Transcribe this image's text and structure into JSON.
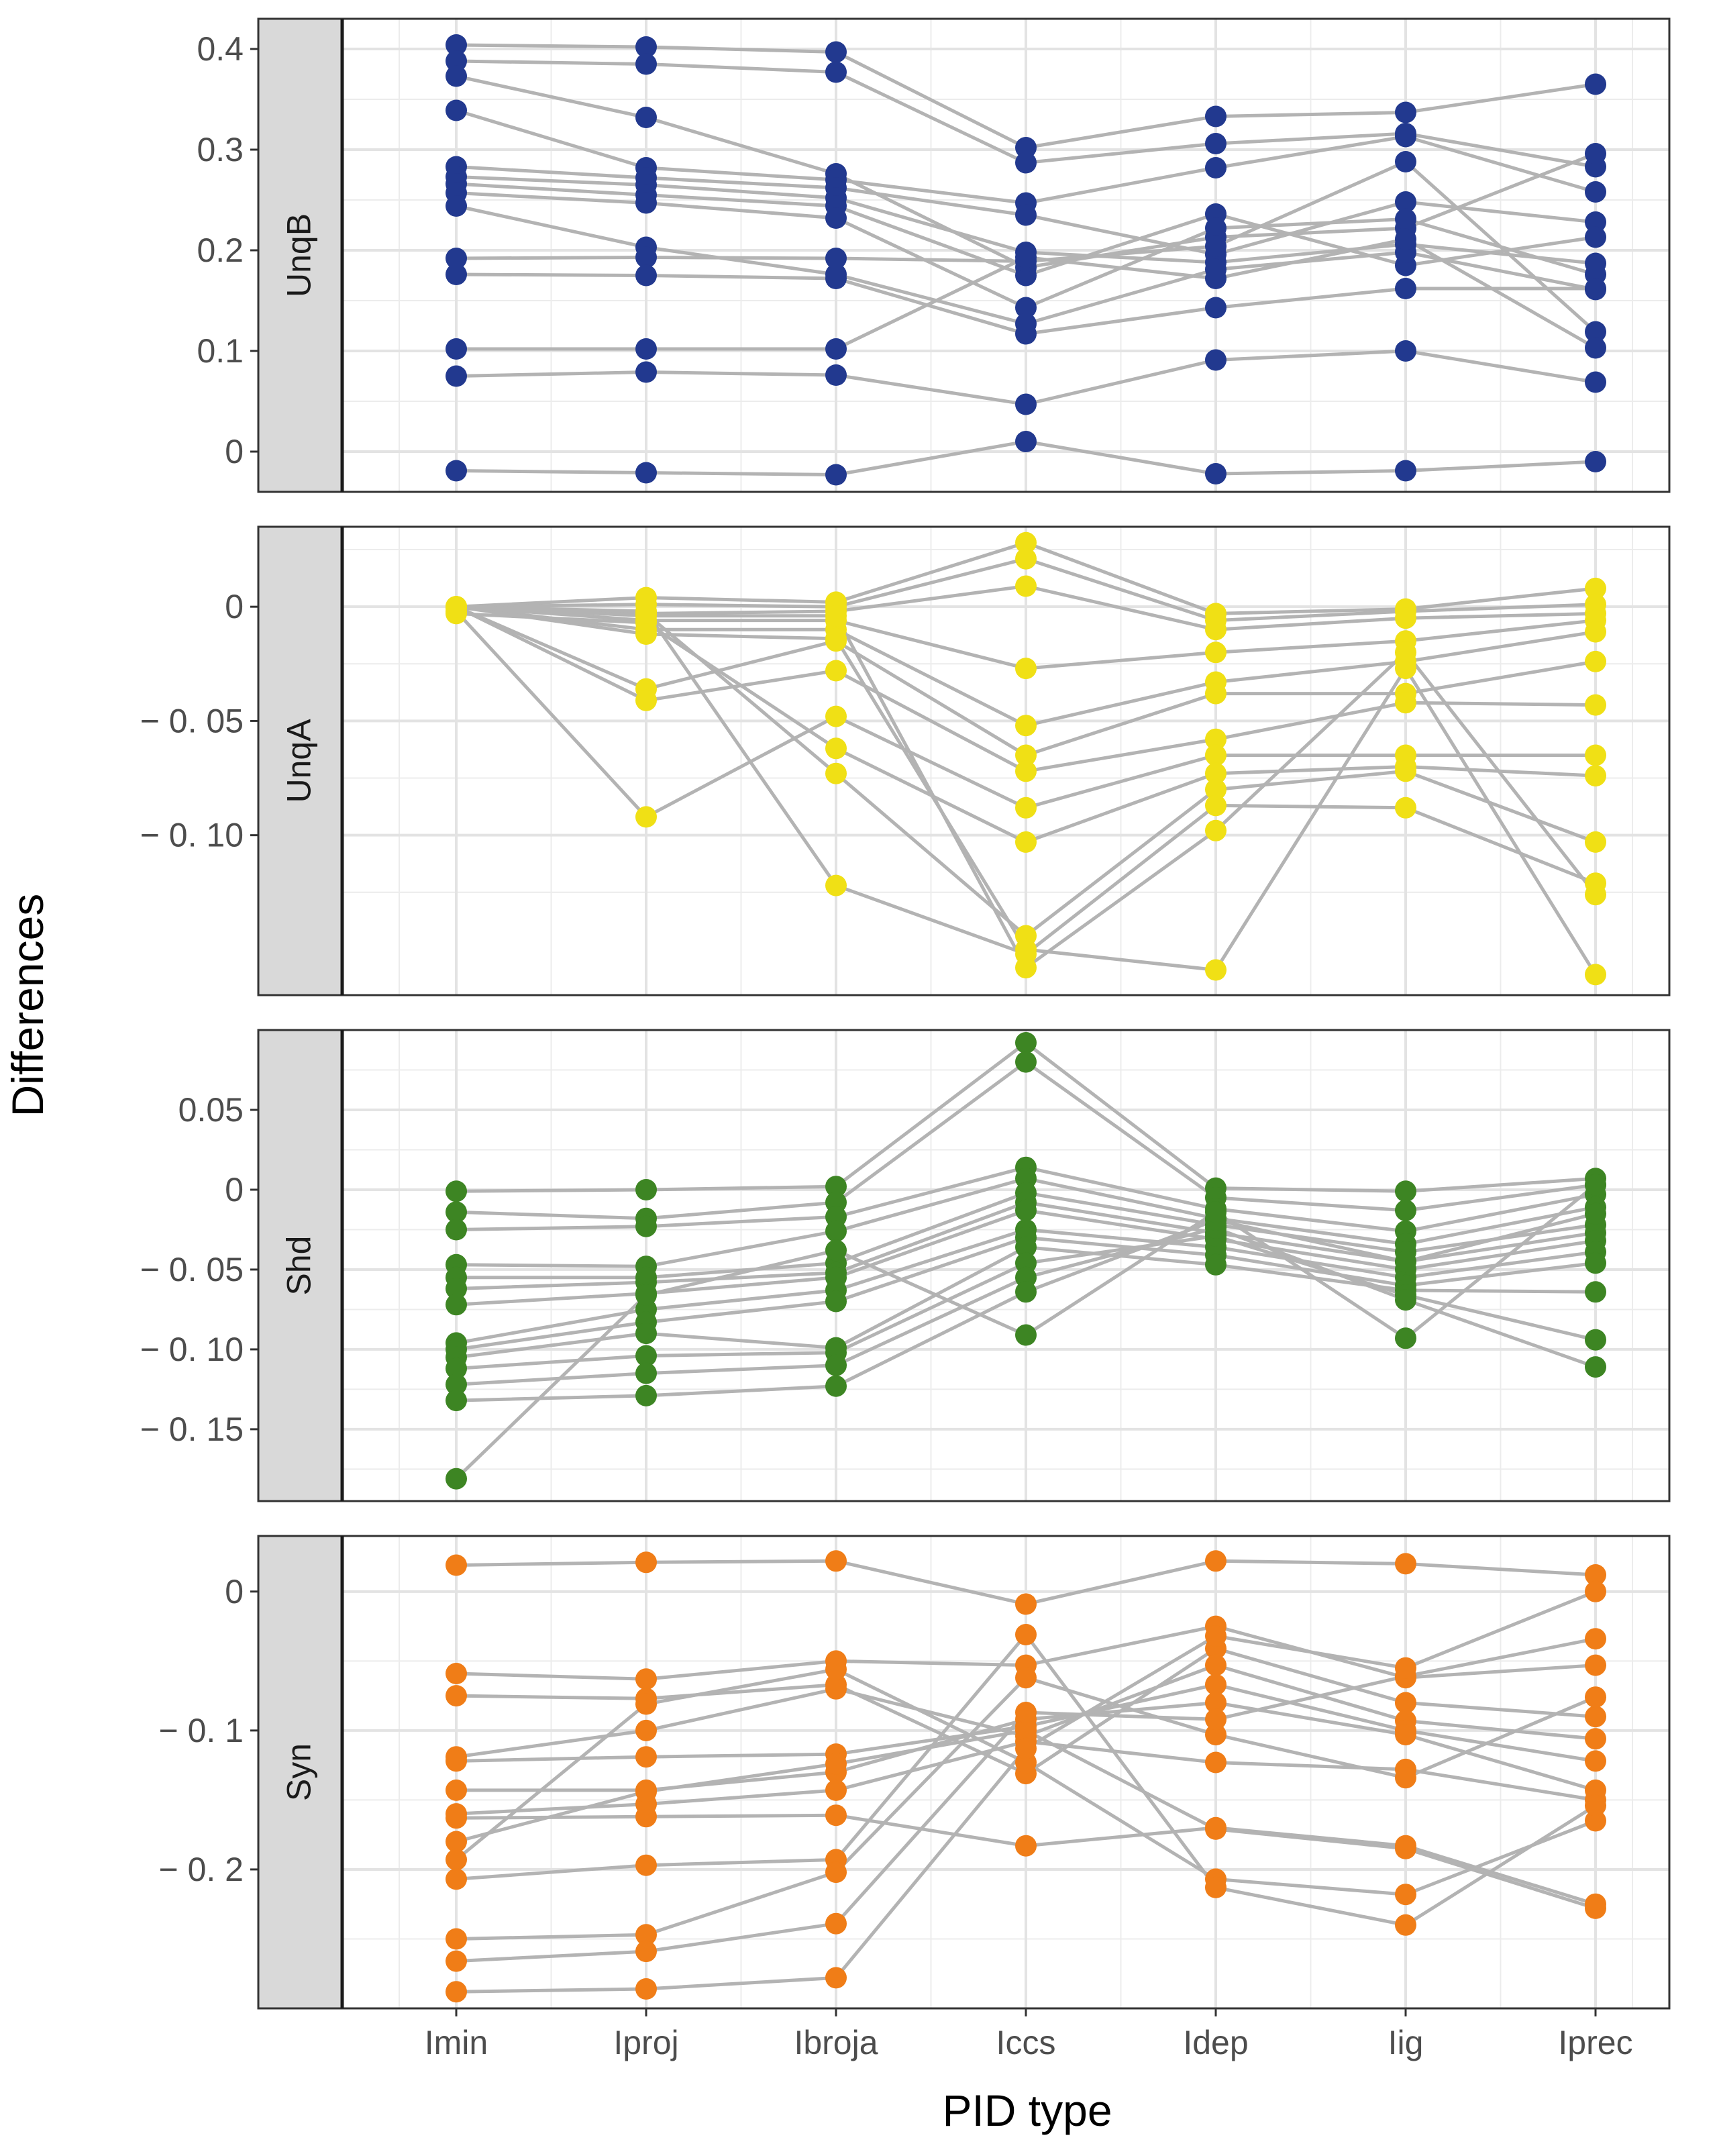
{
  "chart_data": {
    "type": "line",
    "xlabel": "PID type",
    "ylabel": "Differences",
    "categories": [
      "Imin",
      "Iproj",
      "Ibroja",
      "Iccs",
      "Idep",
      "Iig",
      "Iprec"
    ],
    "facets": [
      {
        "label": "UnqB",
        "color": "#22398f",
        "ylim": [
          -0.04,
          0.43
        ],
        "yticks": [
          0,
          0.1,
          0.2,
          0.3,
          0.4
        ],
        "ytick_labels": [
          "0",
          "0.1",
          "0.2",
          "0.3",
          "0.4"
        ],
        "series": [
          [
            0.404,
            0.402,
            0.397,
            0.302,
            0.333,
            0.337,
            0.365
          ],
          [
            0.388,
            0.385,
            0.377,
            0.287,
            0.306,
            0.316,
            0.283
          ],
          [
            0.373,
            0.332,
            0.276,
            0.183,
            0.213,
            0.222,
            0.296
          ],
          [
            0.339,
            0.282,
            0.27,
            0.247,
            0.282,
            0.313,
            0.258
          ],
          [
            0.283,
            0.272,
            0.262,
            0.235,
            0.196,
            0.248,
            0.228
          ],
          [
            0.273,
            0.265,
            0.252,
            0.198,
            0.188,
            0.206,
            0.187
          ],
          [
            0.266,
            0.255,
            0.244,
            0.175,
            0.236,
            0.185,
            0.213
          ],
          [
            0.257,
            0.247,
            0.232,
            0.143,
            0.222,
            0.231,
            0.176
          ],
          [
            0.244,
            0.203,
            0.176,
            0.127,
            0.181,
            0.198,
            0.161
          ],
          [
            0.192,
            0.193,
            0.192,
            0.189,
            0.204,
            0.288,
            0.119
          ],
          [
            0.176,
            0.175,
            0.172,
            0.117,
            0.143,
            0.162,
            0.162
          ],
          [
            0.102,
            0.102,
            0.102,
            0.193,
            0.172,
            0.211,
            0.103
          ],
          [
            0.075,
            0.079,
            0.076,
            0.047,
            0.091,
            0.1,
            0.069
          ],
          [
            -0.019,
            -0.021,
            -0.023,
            0.01,
            -0.022,
            -0.019,
            -0.01
          ]
        ]
      },
      {
        "label": "UnqA",
        "color": "#f0e015",
        "ylim": [
          -0.17,
          0.035
        ],
        "yticks": [
          0,
          -0.05,
          -0.1
        ],
        "ytick_labels": [
          "0",
          "− 0. 05",
          "− 0. 10"
        ],
        "series": [
          [
            0.0,
            0.004,
            0.002,
            0.028,
            -0.003,
            -0.001,
            0.008
          ],
          [
            0.0,
            0.001,
            0.0,
            0.021,
            -0.006,
            -0.002,
            0.001
          ],
          [
            0.0,
            -0.003,
            -0.002,
            0.009,
            -0.01,
            -0.005,
            -0.003
          ],
          [
            0.0,
            -0.006,
            -0.006,
            -0.027,
            -0.02,
            -0.015,
            -0.006
          ],
          [
            0.0,
            -0.01,
            -0.01,
            -0.052,
            -0.033,
            -0.024,
            -0.011
          ],
          [
            0.0,
            -0.036,
            -0.015,
            -0.065,
            -0.038,
            -0.038,
            -0.024
          ],
          [
            0.0,
            -0.041,
            -0.028,
            -0.072,
            -0.058,
            -0.042,
            -0.043
          ],
          [
            -0.002,
            -0.092,
            -0.048,
            -0.088,
            -0.065,
            -0.065,
            -0.065
          ],
          [
            -0.003,
            -0.007,
            -0.062,
            -0.103,
            -0.073,
            -0.07,
            -0.074
          ],
          [
            0.0,
            -0.003,
            -0.073,
            -0.144,
            -0.08,
            -0.072,
            -0.103
          ],
          [
            0.0,
            -0.002,
            -0.122,
            -0.152,
            -0.087,
            -0.088,
            -0.121
          ],
          [
            0.0,
            -0.004,
            -0.004,
            -0.158,
            -0.098,
            -0.02,
            -0.126
          ],
          [
            0.0,
            -0.012,
            -0.014,
            -0.15,
            -0.159,
            -0.027,
            -0.161
          ]
        ]
      },
      {
        "label": "Shd",
        "color": "#3d8523",
        "ylim": [
          -0.195,
          0.1
        ],
        "yticks": [
          0.05,
          0,
          -0.05,
          -0.1,
          -0.15
        ],
        "ytick_labels": [
          "0.05",
          "0",
          "− 0. 05",
          "− 0. 10",
          "− 0. 15"
        ],
        "series": [
          [
            -0.001,
            0.0,
            0.002,
            0.092,
            0.001,
            -0.001,
            0.007
          ],
          [
            -0.014,
            -0.018,
            -0.008,
            0.08,
            -0.005,
            -0.013,
            0.003
          ],
          [
            -0.025,
            -0.023,
            -0.017,
            0.014,
            -0.012,
            -0.026,
            -0.003
          ],
          [
            -0.047,
            -0.048,
            -0.026,
            0.007,
            -0.018,
            -0.034,
            -0.011
          ],
          [
            -0.055,
            -0.055,
            -0.046,
            -0.002,
            -0.022,
            -0.039,
            -0.022
          ],
          [
            -0.062,
            -0.058,
            -0.052,
            -0.008,
            -0.027,
            -0.045,
            -0.027
          ],
          [
            -0.072,
            -0.065,
            -0.055,
            -0.013,
            -0.031,
            -0.05,
            -0.032
          ],
          [
            -0.096,
            -0.075,
            -0.063,
            -0.025,
            -0.036,
            -0.055,
            -0.039
          ],
          [
            -0.1,
            -0.083,
            -0.07,
            -0.03,
            -0.041,
            -0.06,
            -0.046
          ],
          [
            -0.105,
            -0.09,
            -0.099,
            -0.036,
            -0.047,
            -0.063,
            -0.064
          ],
          [
            -0.112,
            -0.104,
            -0.102,
            -0.046,
            -0.029,
            -0.066,
            -0.094
          ],
          [
            -0.122,
            -0.115,
            -0.11,
            -0.055,
            -0.024,
            -0.069,
            -0.111
          ],
          [
            -0.132,
            -0.129,
            -0.123,
            -0.064,
            -0.019,
            -0.045,
            -0.015
          ],
          [
            -0.181,
            -0.066,
            -0.038,
            -0.091,
            -0.014,
            -0.093,
            0.003
          ]
        ]
      },
      {
        "label": "Syn",
        "color": "#f07d17",
        "ylim": [
          -0.3,
          0.04
        ],
        "yticks": [
          0,
          -0.1,
          -0.2
        ],
        "ytick_labels": [
          "0",
          "− 0. 1",
          "− 0. 2"
        ],
        "series": [
          [
            0.019,
            0.021,
            0.022,
            -0.009,
            0.022,
            0.02,
            0.012
          ],
          [
            -0.059,
            -0.063,
            -0.05,
            -0.053,
            -0.025,
            -0.062,
            -0.053
          ],
          [
            -0.075,
            -0.077,
            -0.067,
            -0.131,
            -0.041,
            -0.08,
            -0.09
          ],
          [
            -0.119,
            -0.1,
            -0.07,
            -0.104,
            -0.053,
            -0.093,
            -0.106
          ],
          [
            -0.122,
            -0.119,
            -0.117,
            -0.097,
            -0.067,
            -0.1,
            -0.122
          ],
          [
            -0.143,
            -0.143,
            -0.13,
            -0.092,
            -0.08,
            -0.103,
            -0.143
          ],
          [
            -0.16,
            -0.153,
            -0.143,
            -0.108,
            -0.123,
            -0.128,
            -0.15
          ],
          [
            -0.163,
            -0.162,
            -0.161,
            -0.183,
            -0.17,
            -0.183,
            -0.225
          ],
          [
            -0.18,
            -0.144,
            -0.124,
            -0.1,
            -0.171,
            -0.185,
            -0.228
          ],
          [
            -0.193,
            -0.081,
            -0.056,
            -0.123,
            -0.207,
            -0.218,
            -0.165
          ],
          [
            -0.207,
            -0.197,
            -0.193,
            -0.031,
            -0.213,
            -0.24,
            -0.154
          ],
          [
            -0.25,
            -0.247,
            -0.202,
            -0.062,
            -0.103,
            -0.134,
            -0.076
          ],
          [
            -0.266,
            -0.259,
            -0.239,
            -0.087,
            -0.092,
            -0.061,
            -0.034
          ],
          [
            -0.288,
            -0.286,
            -0.278,
            -0.113,
            -0.032,
            -0.055,
            0.0
          ]
        ]
      }
    ]
  }
}
